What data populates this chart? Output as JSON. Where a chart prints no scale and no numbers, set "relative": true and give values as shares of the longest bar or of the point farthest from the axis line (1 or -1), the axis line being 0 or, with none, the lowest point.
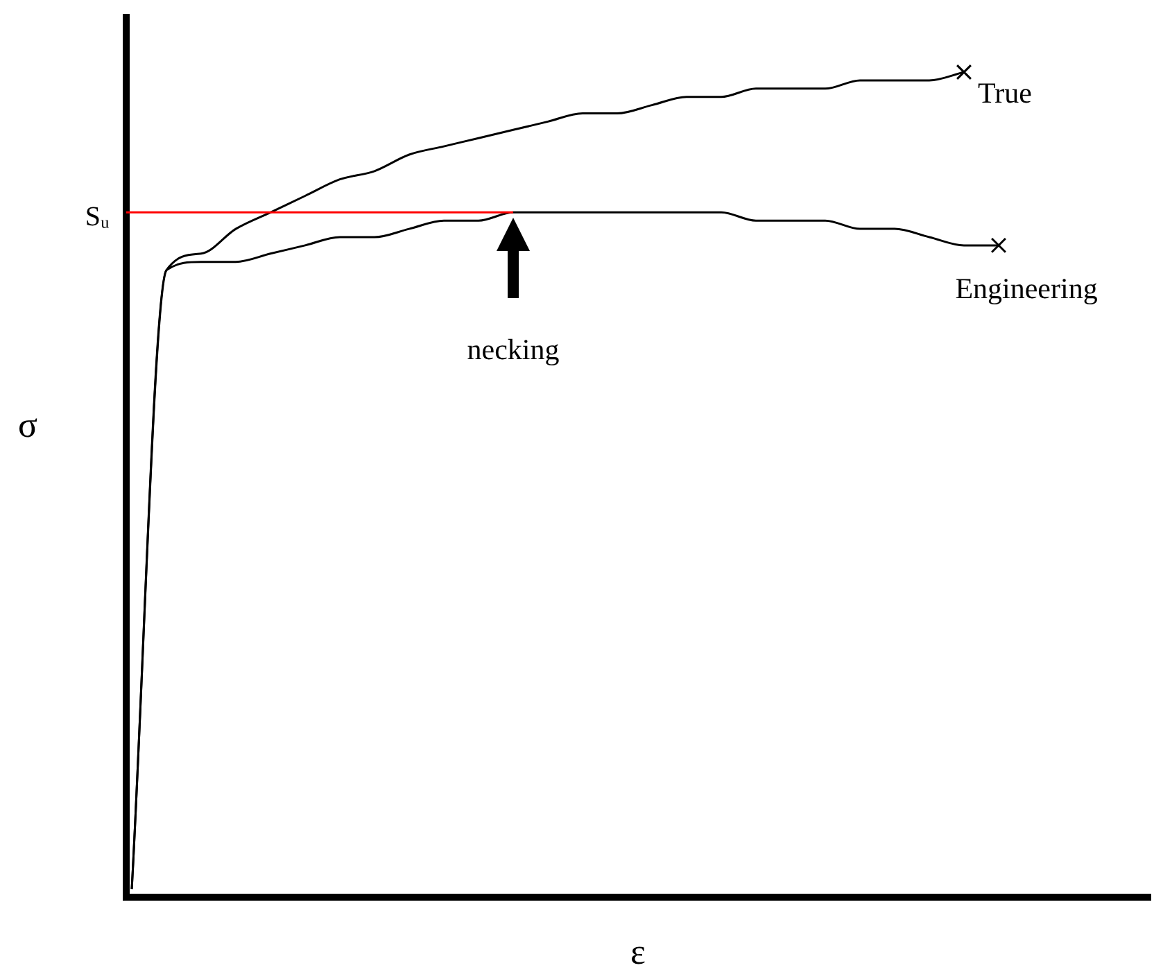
{
  "chart_data": {
    "type": "line",
    "relative": true,
    "xlabel": "ε",
    "ylabel": "σ",
    "categories": [
      null,
      null,
      null,
      null,
      null,
      null,
      null,
      null,
      null,
      null,
      null,
      null,
      null,
      null,
      null,
      null,
      null,
      null,
      null,
      null,
      null,
      null,
      null,
      null,
      null,
      null
    ],
    "series": [
      {
        "name": "True",
        "color": "#000000",
        "values": [
          0.01,
          0.76,
          0.78,
          0.81,
          0.83,
          0.85,
          0.87,
          0.88,
          0.9,
          0.91,
          0.92,
          0.93,
          0.94,
          0.95,
          0.95,
          0.96,
          0.97,
          0.97,
          0.98,
          0.98,
          0.98,
          0.99,
          0.99,
          0.99,
          1.0,
          null
        ]
      },
      {
        "name": "Engineering",
        "color": "#000000",
        "values": [
          0.01,
          0.76,
          0.77,
          0.77,
          0.78,
          0.79,
          0.8,
          0.8,
          0.81,
          0.82,
          0.82,
          0.83,
          0.83,
          0.83,
          0.83,
          0.83,
          0.83,
          0.83,
          0.82,
          0.82,
          0.82,
          0.81,
          0.81,
          0.8,
          0.79,
          0.79
        ]
      }
    ],
    "ref_lines": [
      {
        "axis": "y",
        "value": 0.83,
        "label": "Sᵤ",
        "color": "#ff0000"
      }
    ],
    "annotations": [
      "necking"
    ],
    "line_style": "solid",
    "legend": false
  }
}
